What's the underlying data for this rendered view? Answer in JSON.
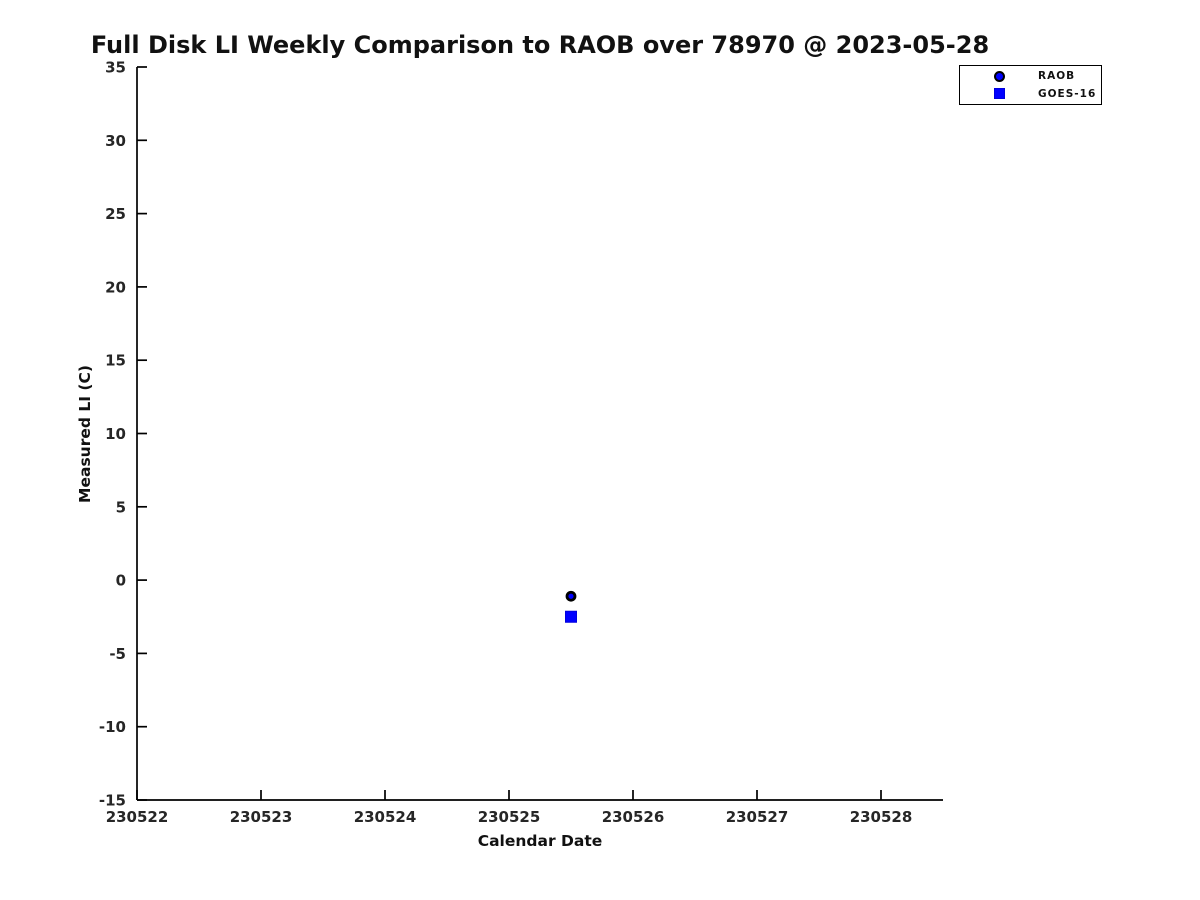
{
  "page": {
    "background": "#ffffff"
  },
  "chart_data": {
    "type": "scatter",
    "title": "Full Disk LI Weekly Comparison to RAOB over 78970 @ 2023-05-28",
    "xlabel": "Calendar Date",
    "ylabel": "Measured LI (C)",
    "xlim": [
      230522,
      230528.5
    ],
    "ylim": [
      -15,
      35
    ],
    "xticks": [
      230522,
      230523,
      230524,
      230525,
      230526,
      230527,
      230528
    ],
    "yticks": [
      35,
      30,
      25,
      20,
      15,
      10,
      5,
      0,
      -5,
      -10,
      -15
    ],
    "grid": false,
    "legend_position": "upper-right",
    "series": [
      {
        "name": "RAOB",
        "marker": "circle",
        "face_color": "#0000ff",
        "edge_color": "#000000",
        "points": [
          {
            "x": 230525.5,
            "y": -1.1
          }
        ]
      },
      {
        "name": "GOES-16",
        "marker": "square",
        "face_color": "#0000ff",
        "edge_color": "#0000dd",
        "points": [
          {
            "x": 230525.5,
            "y": -2.5
          }
        ]
      }
    ],
    "colors": {
      "text": "#111111",
      "tick_label": "#262626",
      "axis": "#000000",
      "background": "#ffffff",
      "marker_blue": "#0000ff"
    }
  }
}
